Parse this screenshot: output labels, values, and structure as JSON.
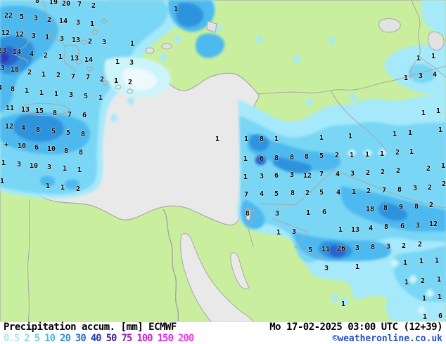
{
  "legend": {
    "title": "Precipitation accum. [mm] ECMWF",
    "datetime": "Mo 17-02-2025 03:00 UTC (12+39)",
    "copyright": "©weatheronline.co.uk",
    "scale": [
      {
        "label": "0.5",
        "color": "#aee8f4"
      },
      {
        "label": "2",
        "color": "#8adcf0"
      },
      {
        "label": "5",
        "color": "#6cd2ee"
      },
      {
        "label": "10",
        "color": "#4cb8ea"
      },
      {
        "label": "20",
        "color": "#2e96dc"
      },
      {
        "label": "30",
        "color": "#2a6ed0"
      },
      {
        "label": "40",
        "color": "#2a3cb4"
      },
      {
        "label": "50",
        "color": "#46249c"
      },
      {
        "label": "75",
        "color": "#8c28b4"
      },
      {
        "label": "100",
        "color": "#c828c8"
      },
      {
        "label": "150",
        "color": "#e428e4"
      },
      {
        "label": "200",
        "color": "#f43cf4"
      }
    ]
  },
  "colors": {
    "sea": "#e9e9e9",
    "land": "#c9ef9e",
    "border": "#a8a8a8",
    "coast_overlay": "#b9a492",
    "rain_05": "#ccf4fb",
    "rain_2": "#a5e9fa",
    "rain_5": "#79d6f5",
    "rain_10": "#4db9ef",
    "rain_20": "#2d93dd",
    "rain_30": "#2a64cd",
    "rain_40": "#2b3cb4"
  },
  "map": {
    "values": [
      [
        53,
        2,
        "8"
      ],
      [
        76,
        4,
        "19"
      ],
      [
        94,
        6,
        "20"
      ],
      [
        113,
        7,
        "7"
      ],
      [
        133,
        9,
        "2"
      ],
      [
        250,
        14,
        "1"
      ],
      [
        12,
        23,
        "22"
      ],
      [
        31,
        25,
        "5"
      ],
      [
        51,
        27,
        "3"
      ],
      [
        70,
        29,
        "2"
      ],
      [
        90,
        31,
        "14"
      ],
      [
        111,
        33,
        "3"
      ],
      [
        131,
        35,
        "1"
      ],
      [
        8,
        48,
        "12"
      ],
      [
        28,
        50,
        "12"
      ],
      [
        48,
        52,
        "3"
      ],
      [
        67,
        54,
        "1"
      ],
      [
        88,
        56,
        "3"
      ],
      [
        108,
        58,
        "13"
      ],
      [
        128,
        60,
        "2"
      ],
      [
        148,
        61,
        "3"
      ],
      [
        188,
        63,
        "1"
      ],
      [
        3,
        73,
        "23"
      ],
      [
        24,
        75,
        "14"
      ],
      [
        45,
        78,
        "4"
      ],
      [
        65,
        80,
        "2"
      ],
      [
        86,
        82,
        "1"
      ],
      [
        106,
        84,
        "13"
      ],
      [
        126,
        86,
        "14"
      ],
      [
        167,
        89,
        "1"
      ],
      [
        187,
        90,
        "3"
      ],
      [
        1,
        98,
        "13"
      ],
      [
        21,
        100,
        "18"
      ],
      [
        42,
        104,
        "2"
      ],
      [
        62,
        107,
        "1"
      ],
      [
        83,
        108,
        "2"
      ],
      [
        104,
        110,
        "7"
      ],
      [
        125,
        111,
        "7"
      ],
      [
        145,
        114,
        "2"
      ],
      [
        165,
        116,
        "1"
      ],
      [
        185,
        118,
        "2"
      ],
      [
        0,
        126,
        "4"
      ],
      [
        18,
        128,
        "8"
      ],
      [
        38,
        130,
        "1"
      ],
      [
        59,
        133,
        "1"
      ],
      [
        80,
        135,
        "1"
      ],
      [
        101,
        136,
        "3"
      ],
      [
        122,
        138,
        "5"
      ],
      [
        143,
        140,
        "1"
      ],
      [
        14,
        155,
        "11"
      ],
      [
        36,
        157,
        "13"
      ],
      [
        56,
        159,
        "15"
      ],
      [
        78,
        162,
        "8"
      ],
      [
        99,
        164,
        "7"
      ],
      [
        120,
        165,
        "6"
      ],
      [
        13,
        181,
        "12"
      ],
      [
        33,
        183,
        "4"
      ],
      [
        54,
        186,
        "8"
      ],
      [
        76,
        188,
        "5"
      ],
      [
        97,
        190,
        "5"
      ],
      [
        118,
        192,
        "8"
      ],
      [
        9,
        207,
        "+"
      ],
      [
        31,
        209,
        "10"
      ],
      [
        52,
        211,
        "6"
      ],
      [
        73,
        213,
        "10"
      ],
      [
        94,
        216,
        "8"
      ],
      [
        115,
        218,
        "8"
      ],
      [
        5,
        233,
        "1"
      ],
      [
        27,
        235,
        "3"
      ],
      [
        48,
        237,
        "10"
      ],
      [
        70,
        239,
        "3"
      ],
      [
        92,
        241,
        "1"
      ],
      [
        113,
        243,
        "1"
      ],
      [
        3,
        259,
        "1"
      ],
      [
        68,
        266,
        "1"
      ],
      [
        89,
        268,
        "1"
      ],
      [
        111,
        270,
        "2"
      ],
      [
        595,
        84,
        "1"
      ],
      [
        616,
        81,
        "1"
      ],
      [
        577,
        112,
        "1"
      ],
      [
        598,
        109,
        "3"
      ],
      [
        618,
        107,
        "4"
      ],
      [
        602,
        162,
        "1"
      ],
      [
        623,
        159,
        "1"
      ],
      [
        309,
        199,
        "1"
      ],
      [
        350,
        199,
        "1"
      ],
      [
        372,
        199,
        "8"
      ],
      [
        393,
        199,
        "1"
      ],
      [
        457,
        197,
        "1"
      ],
      [
        498,
        195,
        "1"
      ],
      [
        561,
        192,
        "1"
      ],
      [
        583,
        190,
        "1"
      ],
      [
        626,
        186,
        "1"
      ],
      [
        349,
        227,
        "1"
      ],
      [
        372,
        227,
        "6"
      ],
      [
        393,
        226,
        "8"
      ],
      [
        415,
        225,
        "8"
      ],
      [
        436,
        224,
        "8"
      ],
      [
        457,
        223,
        "5"
      ],
      [
        479,
        222,
        "2"
      ],
      [
        500,
        222,
        "1"
      ],
      [
        522,
        221,
        "1"
      ],
      [
        543,
        220,
        "1"
      ],
      [
        565,
        218,
        "2"
      ],
      [
        585,
        217,
        "1"
      ],
      [
        630,
        237,
        "1"
      ],
      [
        349,
        253,
        "1"
      ],
      [
        372,
        252,
        "3"
      ],
      [
        393,
        251,
        "6"
      ],
      [
        415,
        250,
        "3"
      ],
      [
        437,
        251,
        "12"
      ],
      [
        457,
        249,
        "7"
      ],
      [
        480,
        249,
        "4"
      ],
      [
        501,
        248,
        "3"
      ],
      [
        523,
        247,
        "2"
      ],
      [
        544,
        246,
        "2"
      ],
      [
        566,
        244,
        "2"
      ],
      [
        609,
        241,
        "2"
      ],
      [
        631,
        263,
        "2"
      ],
      [
        350,
        278,
        "7"
      ],
      [
        372,
        277,
        "4"
      ],
      [
        393,
        277,
        "5"
      ],
      [
        416,
        276,
        "8"
      ],
      [
        437,
        276,
        "2"
      ],
      [
        457,
        275,
        "5"
      ],
      [
        481,
        275,
        "4"
      ],
      [
        503,
        274,
        "1"
      ],
      [
        524,
        273,
        "2"
      ],
      [
        546,
        272,
        "7"
      ],
      [
        568,
        271,
        "8"
      ],
      [
        590,
        269,
        "3"
      ],
      [
        611,
        268,
        "2"
      ],
      [
        352,
        305,
        "8"
      ],
      [
        394,
        305,
        "3"
      ],
      [
        438,
        304,
        "1"
      ],
      [
        461,
        303,
        "6"
      ],
      [
        526,
        299,
        "18"
      ],
      [
        548,
        297,
        "8"
      ],
      [
        570,
        296,
        "9"
      ],
      [
        592,
        295,
        "8"
      ],
      [
        613,
        293,
        "2"
      ],
      [
        396,
        332,
        "1"
      ],
      [
        418,
        331,
        "3"
      ],
      [
        484,
        328,
        "1"
      ],
      [
        505,
        328,
        "13"
      ],
      [
        527,
        326,
        "4"
      ],
      [
        549,
        324,
        "8"
      ],
      [
        572,
        323,
        "6"
      ],
      [
        594,
        322,
        "3"
      ],
      [
        616,
        320,
        "12"
      ],
      [
        441,
        357,
        "5"
      ],
      [
        463,
        356,
        "11"
      ],
      [
        485,
        355,
        "26"
      ],
      [
        508,
        354,
        "3"
      ],
      [
        530,
        353,
        "8"
      ],
      [
        552,
        352,
        "3"
      ],
      [
        574,
        351,
        "2"
      ],
      [
        597,
        349,
        "2"
      ],
      [
        464,
        383,
        "3"
      ],
      [
        508,
        381,
        "1"
      ],
      [
        576,
        375,
        "1"
      ],
      [
        599,
        373,
        "1"
      ],
      [
        621,
        372,
        "1"
      ],
      [
        578,
        403,
        "1"
      ],
      [
        601,
        401,
        "2"
      ],
      [
        624,
        399,
        "1"
      ],
      [
        603,
        426,
        "1"
      ],
      [
        625,
        424,
        "1"
      ],
      [
        488,
        434,
        "1"
      ],
      [
        604,
        452,
        "1"
      ],
      [
        626,
        451,
        "6"
      ]
    ]
  }
}
